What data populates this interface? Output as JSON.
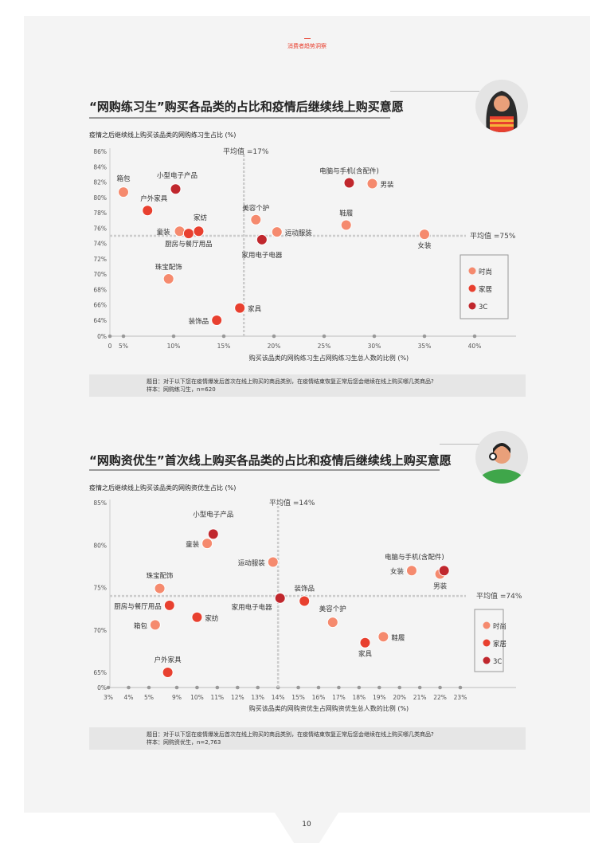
{
  "header": {
    "section": "消费者趋势洞察"
  },
  "page_number": "10",
  "colors": {
    "时尚": "#F58A6E",
    "家居": "#E8402F",
    "3C": "#C0272D"
  },
  "chart_data": [
    {
      "type": "scatter",
      "title": "“网购练习生”购买各品类的占比和疫情后继续线上购买意愿",
      "ylabel": "疫情之后继续线上购买该品类的网购练习生占比 (%)",
      "xlabel": "购买该品类的网购练习生占网购练习生总人数的比例 (%)",
      "xticks": [
        "0",
        "5%",
        "10%",
        "15%",
        "20%",
        "25%",
        "30%",
        "35%",
        "40%"
      ],
      "yticks": [
        "0%",
        "64%",
        "66%",
        "68%",
        "70%",
        "72%",
        "74%",
        "76%",
        "78%",
        "80%",
        "82%",
        "84%",
        "86%"
      ],
      "avg_x": 17,
      "avg_y": 75,
      "avg_x_label": "平均值 =17%",
      "avg_y_label": "平均值 =75%",
      "legend": [
        "时尚",
        "家居",
        "3C"
      ],
      "legend_position": "right",
      "points": [
        {
          "label": "箱包",
          "x": 5.0,
          "y": 80.7,
          "group": "时尚"
        },
        {
          "label": "小型电子产品",
          "x": 10.2,
          "y": 81.1,
          "group": "3C"
        },
        {
          "label": "户外家具",
          "x": 7.4,
          "y": 78.3,
          "group": "家居"
        },
        {
          "label": "童装",
          "x": 10.6,
          "y": 75.6,
          "group": "时尚"
        },
        {
          "label": "厨房与餐厅用品",
          "x": 11.5,
          "y": 75.3,
          "group": "家居"
        },
        {
          "label": "家纺",
          "x": 12.5,
          "y": 75.6,
          "group": "家居"
        },
        {
          "label": "珠宝配饰",
          "x": 9.5,
          "y": 69.4,
          "group": "时尚"
        },
        {
          "label": "家具",
          "x": 16.6,
          "y": 65.6,
          "group": "家居"
        },
        {
          "label": "装饰品",
          "x": 14.3,
          "y": 64.0,
          "group": "家居"
        },
        {
          "label": "美容个护",
          "x": 18.2,
          "y": 77.1,
          "group": "时尚"
        },
        {
          "label": "运动服装",
          "x": 20.3,
          "y": 75.5,
          "group": "时尚"
        },
        {
          "label": "家用电子电器",
          "x": 18.8,
          "y": 74.5,
          "group": "3C"
        },
        {
          "label": "电脑与手机(含配件)",
          "x": 27.5,
          "y": 81.9,
          "group": "3C"
        },
        {
          "label": "男装",
          "x": 29.8,
          "y": 81.8,
          "group": "时尚"
        },
        {
          "label": "鞋履",
          "x": 27.2,
          "y": 76.4,
          "group": "时尚"
        },
        {
          "label": "女装",
          "x": 35.0,
          "y": 75.2,
          "group": "时尚"
        }
      ],
      "note_question": "题目：对于以下您在疫情爆发后首次在线上购买的商品类别，在疫情结束恢复正常后您会继续在线上购买哪几类商品?",
      "note_sample": "样本：网购练习生，n=620"
    },
    {
      "type": "scatter",
      "title": "“网购资优生”首次线上购买各品类的占比和疫情后继续线上购买意愿",
      "ylabel": "疫情之后继续线上购买该品类的网购资优生占比 (%)",
      "xlabel": "购买该品类的网购资优生占网购资优生总人数的比例 (%)",
      "xticks": [
        "3%",
        "4%",
        "5%",
        "9%",
        "10%",
        "11%",
        "12%",
        "13%",
        "14%",
        "15%",
        "16%",
        "17%",
        "18%",
        "19%",
        "20%",
        "21%",
        "22%",
        "23%"
      ],
      "yticks": [
        "0%",
        "65%",
        "70%",
        "75%",
        "80%",
        "85%"
      ],
      "avg_x": 14,
      "avg_y": 74,
      "avg_x_label": "平均值 =14%",
      "avg_y_label": "平均值 =74%",
      "legend": [
        "时尚",
        "家居",
        "3C"
      ],
      "legend_position": "right",
      "points": [
        {
          "label": "小型电子产品",
          "x": 10.8,
          "y": 81.3,
          "group": "3C"
        },
        {
          "label": "童装",
          "x": 10.5,
          "y": 80.2,
          "group": "时尚"
        },
        {
          "label": "运动服装",
          "x": 13.75,
          "y": 78.0,
          "group": "时尚"
        },
        {
          "label": "珠宝配饰",
          "x": 6.55,
          "y": 74.9,
          "group": "时尚"
        },
        {
          "label": "厨房与餐厅用品",
          "x": 7.95,
          "y": 72.9,
          "group": "家居"
        },
        {
          "label": "家纺",
          "x": 10.0,
          "y": 71.5,
          "group": "家居"
        },
        {
          "label": "箱包",
          "x": 5.9,
          "y": 70.6,
          "group": "时尚"
        },
        {
          "label": "户外家具",
          "x": 7.7,
          "y": 65.0,
          "group": "家居"
        },
        {
          "label": "家用电子电器",
          "x": 14.1,
          "y": 73.75,
          "group": "3C"
        },
        {
          "label": "装饰品",
          "x": 15.3,
          "y": 73.4,
          "group": "家居"
        },
        {
          "label": "美容个护",
          "x": 16.7,
          "y": 70.9,
          "group": "时尚"
        },
        {
          "label": "家具",
          "x": 18.3,
          "y": 68.5,
          "group": "家居"
        },
        {
          "label": "鞋履",
          "x": 19.2,
          "y": 69.2,
          "group": "时尚"
        },
        {
          "label": "女装",
          "x": 20.6,
          "y": 77.0,
          "group": "时尚"
        },
        {
          "label": "男装",
          "x": 22.0,
          "y": 76.6,
          "group": "时尚"
        },
        {
          "label": "电脑与手机(含配件)",
          "x": 22.2,
          "y": 77.0,
          "group": "3C"
        }
      ],
      "note_question": "题目：对于以下您在疫情爆发后首次在线上购买的商品类别，在疫情结束恢复正常后您会继续在线上购买哪几类商品?",
      "note_sample": "样本：网购资优生，n=2,763"
    }
  ]
}
